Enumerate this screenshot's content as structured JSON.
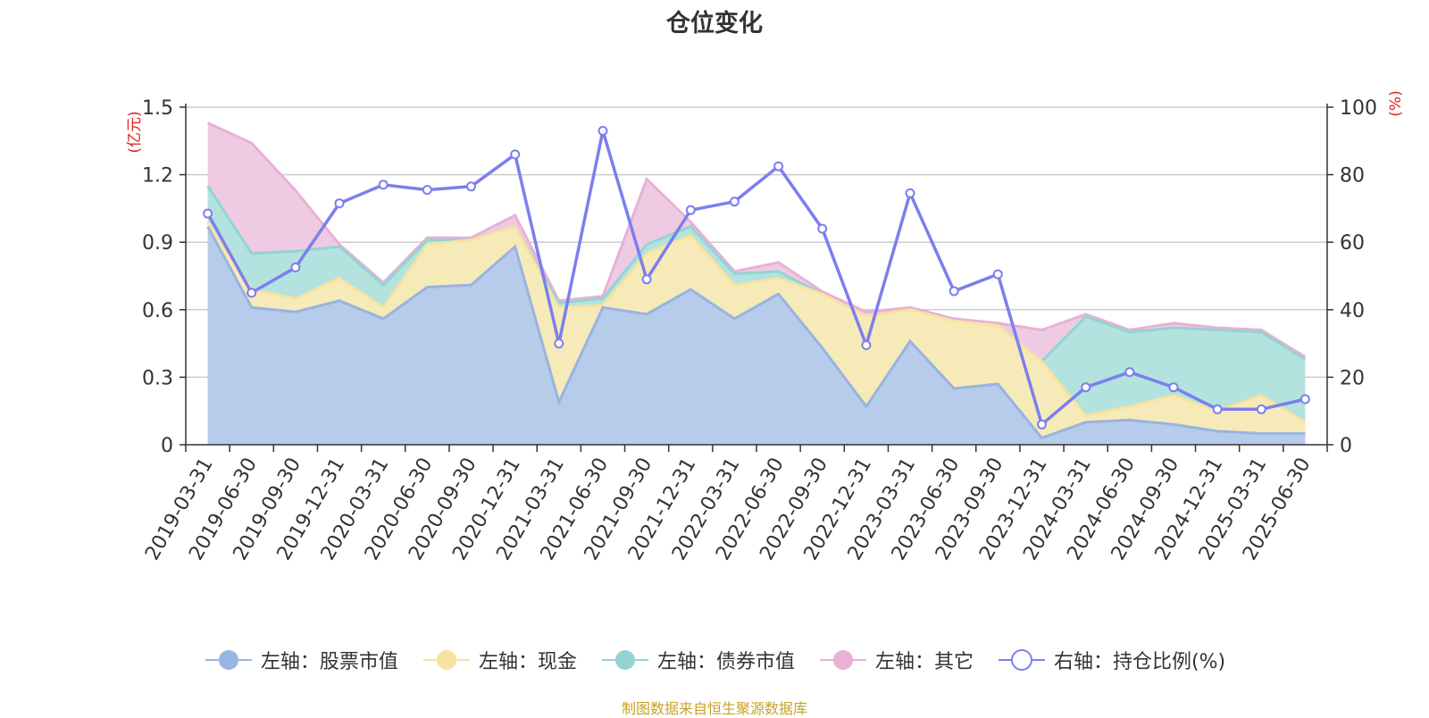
{
  "title": "仓位变化",
  "source": "制图数据来自恒生聚源数据库",
  "chart_data": {
    "type": "area",
    "categories": [
      "2019-03-31",
      "2019-06-30",
      "2019-09-30",
      "2019-12-31",
      "2020-03-31",
      "2020-06-30",
      "2020-09-30",
      "2020-12-31",
      "2021-03-31",
      "2021-06-30",
      "2021-09-30",
      "2021-12-31",
      "2022-03-31",
      "2022-06-30",
      "2022-09-30",
      "2022-12-31",
      "2023-03-31",
      "2023-06-30",
      "2023-09-30",
      "2023-12-31",
      "2024-03-31",
      "2024-06-30",
      "2024-09-30",
      "2024-12-31",
      "2025-03-31",
      "2025-06-30"
    ],
    "left_axis": {
      "unit": "(亿元)",
      "ylim": [
        0,
        1.5
      ],
      "ticks": [
        "0",
        "0.3",
        "0.6",
        "0.9",
        "1.2",
        "1.5"
      ],
      "tick_values": [
        0,
        0.3,
        0.6,
        0.9,
        1.2,
        1.5
      ]
    },
    "right_axis": {
      "unit": "(%)",
      "ylim": [
        0,
        100
      ],
      "ticks": [
        "0",
        "20",
        "40",
        "60",
        "80",
        "100"
      ],
      "tick_values": [
        0,
        20,
        40,
        60,
        80,
        100
      ]
    },
    "grid": true,
    "legend_position": "bottom",
    "stacked_series": [
      {
        "name": "左轴：股票市值",
        "color": "#98b4e0",
        "fill": "#b7cbea",
        "values": [
          0.97,
          0.61,
          0.59,
          0.64,
          0.56,
          0.7,
          0.71,
          0.88,
          0.19,
          0.61,
          0.58,
          0.69,
          0.56,
          0.67,
          0.43,
          0.17,
          0.46,
          0.25,
          0.27,
          0.03,
          0.1,
          0.11,
          0.09,
          0.06,
          0.05,
          0.05
        ]
      },
      {
        "name": "左轴：现金",
        "color": "#f6e3a0",
        "fill": "#f7eab9",
        "values": [
          0.02,
          0.08,
          0.06,
          0.1,
          0.05,
          0.19,
          0.2,
          0.09,
          0.42,
          0.01,
          0.27,
          0.24,
          0.15,
          0.07,
          0.24,
          0.4,
          0.14,
          0.3,
          0.26,
          0.34,
          0.03,
          0.06,
          0.13,
          0.09,
          0.17,
          0.05
        ]
      },
      {
        "name": "左轴：债券市值",
        "color": "#93d4d3",
        "fill": "#b3e2df",
        "values": [
          0.16,
          0.16,
          0.21,
          0.14,
          0.1,
          0.02,
          0.0,
          0.0,
          0.02,
          0.03,
          0.04,
          0.04,
          0.05,
          0.03,
          0.0,
          0.0,
          0.0,
          0.0,
          0.0,
          0.0,
          0.44,
          0.33,
          0.3,
          0.36,
          0.28,
          0.28
        ]
      },
      {
        "name": "左轴：其它",
        "color": "#e8b1d6",
        "fill": "#eecbe3",
        "values": [
          0.28,
          0.49,
          0.27,
          0.01,
          0.01,
          0.01,
          0.01,
          0.05,
          0.01,
          0.01,
          0.29,
          0.02,
          0.01,
          0.04,
          0.01,
          0.02,
          0.01,
          0.01,
          0.01,
          0.14,
          0.01,
          0.01,
          0.02,
          0.01,
          0.01,
          0.01
        ]
      }
    ],
    "line_series": {
      "name": "右轴：持仓比例(%)",
      "color": "#7b7fee",
      "values": [
        68.5,
        45.0,
        52.5,
        71.5,
        77.0,
        75.5,
        76.5,
        86.0,
        30.0,
        93.0,
        49.0,
        69.5,
        72.0,
        82.5,
        64.0,
        29.5,
        74.5,
        45.5,
        50.5,
        6.0,
        17.0,
        21.5,
        17.0,
        10.5,
        10.5,
        13.5
      ]
    }
  }
}
